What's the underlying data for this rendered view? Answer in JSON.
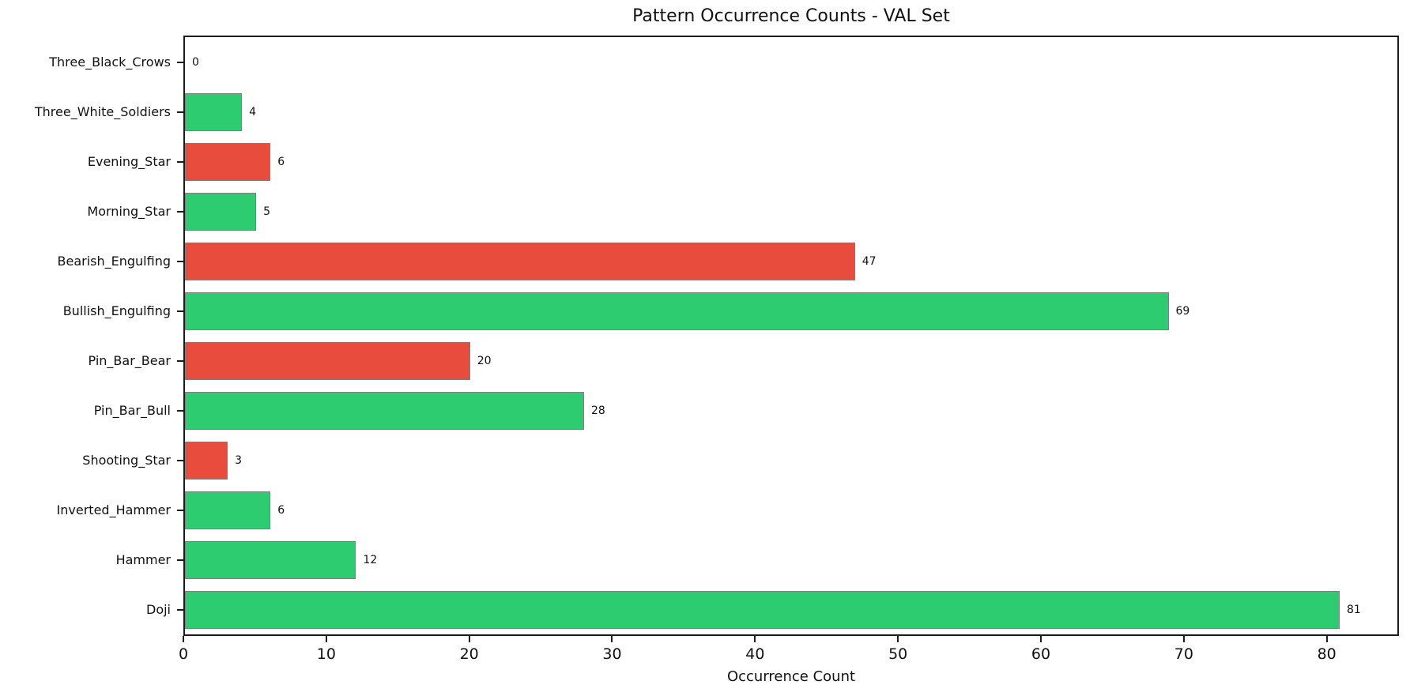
{
  "figure": {
    "background": "#ffffff"
  },
  "chart_data": {
    "type": "bar",
    "orientation": "horizontal",
    "title": "Pattern Occurrence Counts - VAL Set",
    "xlabel": "Occurrence Count",
    "ylabel": "",
    "categories": [
      "Three_Black_Crows",
      "Three_White_Soldiers",
      "Evening_Star",
      "Morning_Star",
      "Bearish_Engulfing",
      "Bullish_Engulfing",
      "Pin_Bar_Bear",
      "Pin_Bar_Bull",
      "Shooting_Star",
      "Inverted_Hammer",
      "Hammer",
      "Doji"
    ],
    "values": [
      0,
      4,
      6,
      5,
      47,
      69,
      20,
      28,
      3,
      6,
      12,
      81
    ],
    "bar_colors": [
      "#e74c3c",
      "#2ecc71",
      "#e74c3c",
      "#2ecc71",
      "#e74c3c",
      "#2ecc71",
      "#e74c3c",
      "#2ecc71",
      "#e74c3c",
      "#2ecc71",
      "#2ecc71",
      "#2ecc71"
    ],
    "x_ticks": [
      0,
      10,
      20,
      30,
      40,
      50,
      60,
      70,
      80
    ],
    "xlim": [
      0,
      85.05
    ],
    "grid": false,
    "legend": null,
    "colors": {
      "bullish_green": "#2ecc71",
      "bearish_red": "#e74c3c",
      "bar_edge": "#7f7f7f",
      "axis_spine": "#1c1c1c",
      "text": "#111111"
    }
  }
}
